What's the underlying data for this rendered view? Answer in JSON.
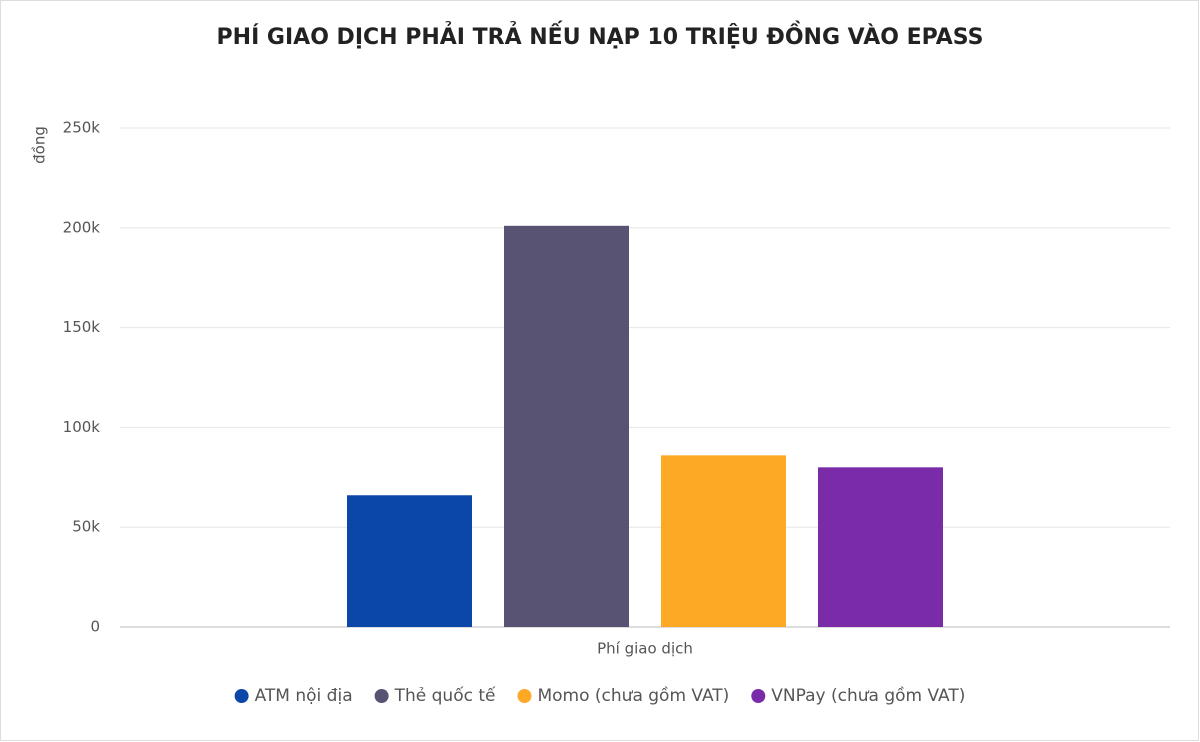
{
  "chart_data": {
    "type": "bar",
    "title": "PHÍ GIAO DỊCH PHẢI TRẢ NẾU NẠP 10 TRIỆU ĐỒNG VÀO EPASS",
    "y_label": "đồng",
    "categories": [
      "Phí giao dịch"
    ],
    "series": [
      {
        "name": "ATM nội địa",
        "color": "#0b47a8",
        "values": [
          66000
        ]
      },
      {
        "name": "Thẻ quốc tế",
        "color": "#585273",
        "values": [
          201000
        ]
      },
      {
        "name": "Momo (chưa gồm VAT)",
        "color": "#fda926",
        "values": [
          86000
        ]
      },
      {
        "name": "VNPay (chưa gồm VAT)",
        "color": "#7a2ba8",
        "values": [
          80000
        ]
      }
    ],
    "ylim": [
      0,
      250000
    ],
    "yticks": [
      0,
      {
        "value": 50000,
        "label": "50k"
      },
      {
        "value": 100000,
        "label": "100k"
      },
      {
        "value": 150000,
        "label": "150k"
      },
      {
        "value": 200000,
        "label": "200k"
      },
      {
        "value": 250000,
        "label": "250k"
      }
    ],
    "grid": true,
    "legend": "bottom"
  }
}
